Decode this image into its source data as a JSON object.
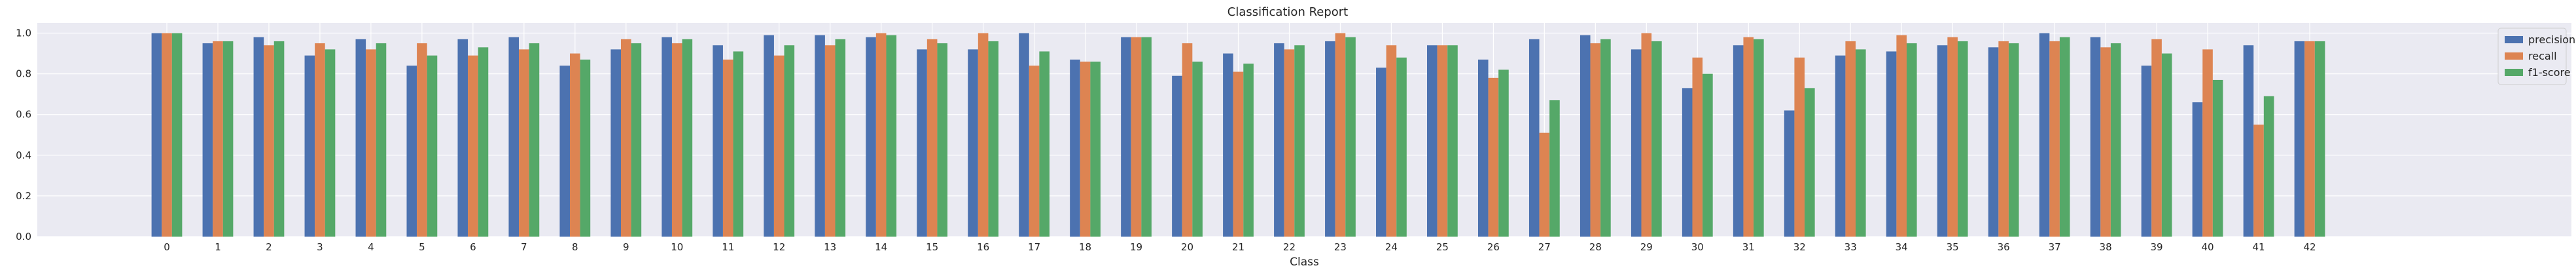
{
  "chart_data": {
    "type": "bar",
    "title": "Classification Report",
    "xlabel": "Class",
    "ylabel": "",
    "ylim": [
      0,
      1.05
    ],
    "yticks": [
      0.0,
      0.2,
      0.4,
      0.6,
      0.8,
      1.0
    ],
    "ytick_labels": [
      "0.0",
      "0.2",
      "0.4",
      "0.6",
      "0.8",
      "1.0"
    ],
    "grid": true,
    "legend_position": "top-right",
    "categories": [
      "0",
      "1",
      "2",
      "3",
      "4",
      "5",
      "6",
      "7",
      "8",
      "9",
      "10",
      "11",
      "12",
      "13",
      "14",
      "15",
      "16",
      "17",
      "18",
      "19",
      "20",
      "21",
      "22",
      "23",
      "24",
      "25",
      "26",
      "27",
      "28",
      "29",
      "30",
      "31",
      "32",
      "33",
      "34",
      "35",
      "36",
      "37",
      "38",
      "39",
      "40",
      "41",
      "42"
    ],
    "series": [
      {
        "name": "precision",
        "color": "#4c72b0",
        "values": [
          1.0,
          0.95,
          0.98,
          0.89,
          0.97,
          0.84,
          0.97,
          0.98,
          0.84,
          0.92,
          0.98,
          0.94,
          0.99,
          0.99,
          0.98,
          0.92,
          0.92,
          1.0,
          0.87,
          0.98,
          0.79,
          0.9,
          0.95,
          0.96,
          0.83,
          0.94,
          0.87,
          0.97,
          0.99,
          0.92,
          0.73,
          0.94,
          0.62,
          0.89,
          0.91,
          0.94,
          0.93,
          1.0,
          0.98,
          0.84,
          0.66,
          0.94,
          0.96
        ]
      },
      {
        "name": "recall",
        "color": "#dd8452",
        "values": [
          1.0,
          0.96,
          0.94,
          0.95,
          0.92,
          0.95,
          0.89,
          0.92,
          0.9,
          0.97,
          0.95,
          0.87,
          0.89,
          0.94,
          1.0,
          0.97,
          1.0,
          0.84,
          0.86,
          0.98,
          0.95,
          0.81,
          0.92,
          1.0,
          0.94,
          0.94,
          0.78,
          0.51,
          0.95,
          1.0,
          0.88,
          0.98,
          0.88,
          0.96,
          0.99,
          0.98,
          0.96,
          0.96,
          0.93,
          0.97,
          0.92,
          0.55,
          0.96
        ]
      },
      {
        "name": "f1-score",
        "color": "#55a868",
        "values": [
          1.0,
          0.96,
          0.96,
          0.92,
          0.95,
          0.89,
          0.93,
          0.95,
          0.87,
          0.95,
          0.97,
          0.91,
          0.94,
          0.97,
          0.99,
          0.95,
          0.96,
          0.91,
          0.86,
          0.98,
          0.86,
          0.85,
          0.94,
          0.98,
          0.88,
          0.94,
          0.82,
          0.67,
          0.97,
          0.96,
          0.8,
          0.97,
          0.73,
          0.92,
          0.95,
          0.96,
          0.95,
          0.98,
          0.95,
          0.9,
          0.77,
          0.69,
          0.96
        ]
      }
    ]
  },
  "style": {
    "plot_background": "#eaeaf2",
    "grid_color": "#ffffff",
    "text_color": "#262626",
    "legend_background": "#eaeaf2",
    "legend_border": "#cccccc"
  }
}
